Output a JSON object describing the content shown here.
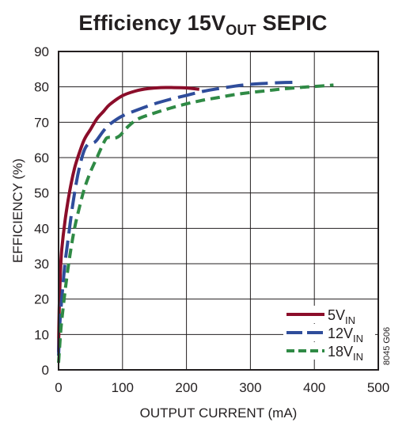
{
  "chart_data": {
    "type": "line",
    "title": {
      "main": "Efficiency  15V",
      "subscript": "OUT",
      "suffix": " SEPIC"
    },
    "xlabel": "OUTPUT CURRENT (mA)",
    "ylabel": "EFFICIENCY (%)",
    "xlim": [
      0,
      500
    ],
    "ylim": [
      0,
      90
    ],
    "x_ticks": [
      0,
      100,
      200,
      300,
      400,
      500
    ],
    "y_ticks": [
      0,
      10,
      20,
      30,
      40,
      50,
      60,
      70,
      80,
      90
    ],
    "grid": true,
    "legend_position": "bottom-right",
    "figure_code": "8045 G06",
    "series": [
      {
        "name": "5V",
        "name_subscript": "IN",
        "color": "#8b0d2a",
        "dash": "solid",
        "x": [
          0,
          1,
          3,
          5,
          10,
          15,
          20,
          25,
          30,
          40,
          50,
          60,
          70,
          80,
          100,
          120,
          140,
          160,
          180,
          200,
          220
        ],
        "y": [
          5,
          17,
          28,
          34,
          42,
          48,
          53,
          57,
          60,
          65,
          68,
          71,
          73,
          75,
          77.5,
          78.8,
          79.5,
          79.8,
          79.8,
          79.7,
          79.3
        ]
      },
      {
        "name": "12V",
        "name_subscript": "IN",
        "color": "#2f4d9b",
        "dash": "long-dash",
        "x": [
          0,
          2,
          5,
          10,
          15,
          20,
          25,
          30,
          35,
          40,
          45,
          50,
          55,
          60,
          70,
          80,
          100,
          125,
          150,
          175,
          200,
          225,
          250,
          275,
          300,
          325,
          350,
          370
        ],
        "y": [
          4,
          13,
          20,
          30,
          37,
          44,
          50,
          55,
          59,
          62,
          63.6,
          64.1,
          64.2,
          65,
          67.5,
          69.4,
          71.8,
          73.6,
          75.2,
          76.5,
          77.6,
          78.7,
          79.5,
          80.2,
          80.7,
          81,
          81.2,
          81.3
        ]
      },
      {
        "name": "18V",
        "name_subscript": "IN",
        "color": "#2f8a45",
        "dash": "dash",
        "x": [
          0,
          3,
          5,
          10,
          15,
          20,
          25,
          30,
          40,
          50,
          60,
          70,
          75,
          80,
          85,
          90,
          95,
          100,
          110,
          125,
          150,
          175,
          200,
          225,
          250,
          275,
          300,
          325,
          350,
          375,
          400,
          430
        ],
        "y": [
          2,
          10,
          14,
          22,
          29,
          35,
          40,
          44,
          51,
          56,
          60,
          64,
          65.5,
          65.7,
          65.5,
          65.6,
          66.1,
          67,
          69,
          71,
          72.6,
          74,
          75.2,
          76.2,
          77,
          77.8,
          78.4,
          78.9,
          79.4,
          79.8,
          80.1,
          80.5
        ]
      }
    ]
  }
}
